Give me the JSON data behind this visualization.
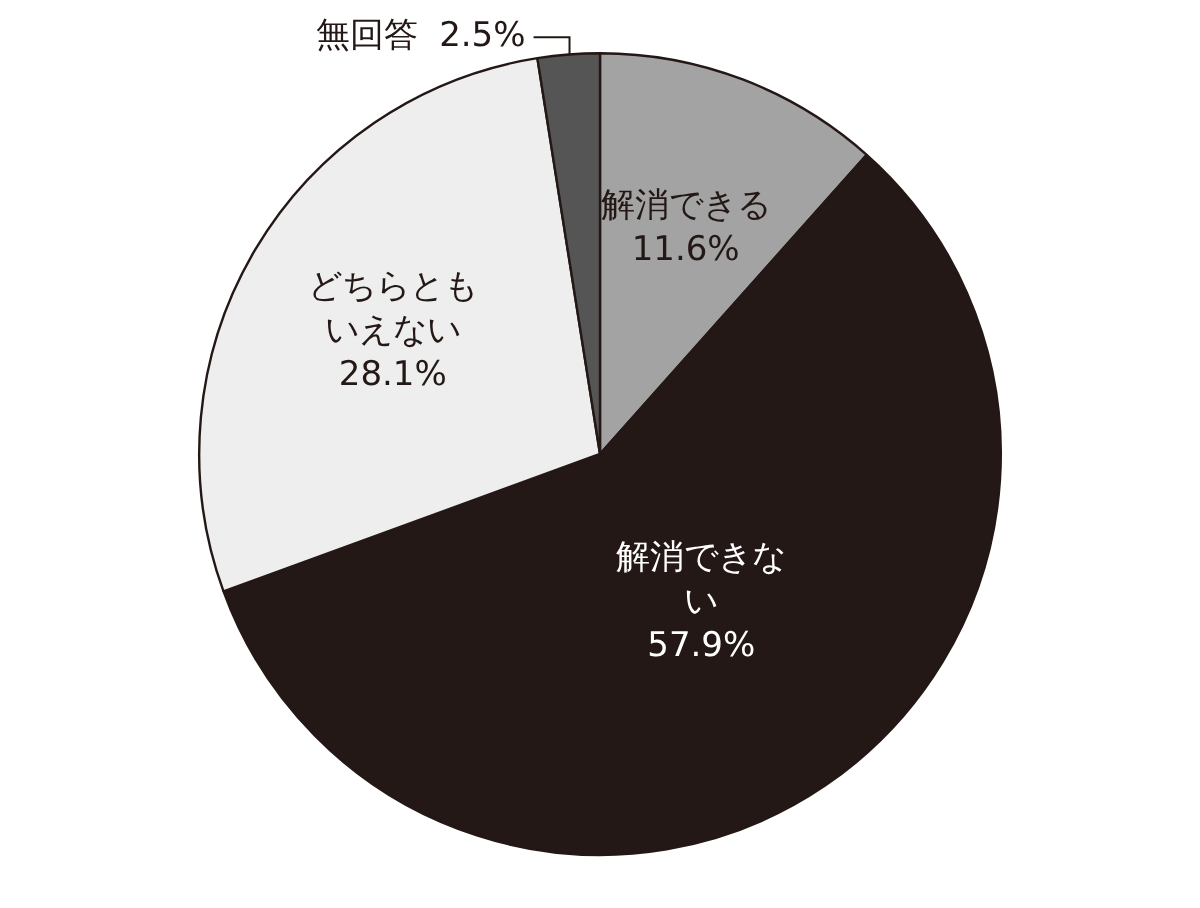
{
  "chart_data": {
    "type": "pie",
    "categories": [
      "解消できる",
      "解消できない",
      "どちらともいえない",
      "無回答"
    ],
    "values": [
      11.6,
      57.9,
      28.1,
      2.5
    ],
    "colors": [
      "#a3a3a3",
      "#231815",
      "#eeeeee",
      "#555555"
    ],
    "value_labels": [
      "11.6%",
      "57.9%",
      "28.1%",
      "2.5%"
    ],
    "legend": false
  }
}
